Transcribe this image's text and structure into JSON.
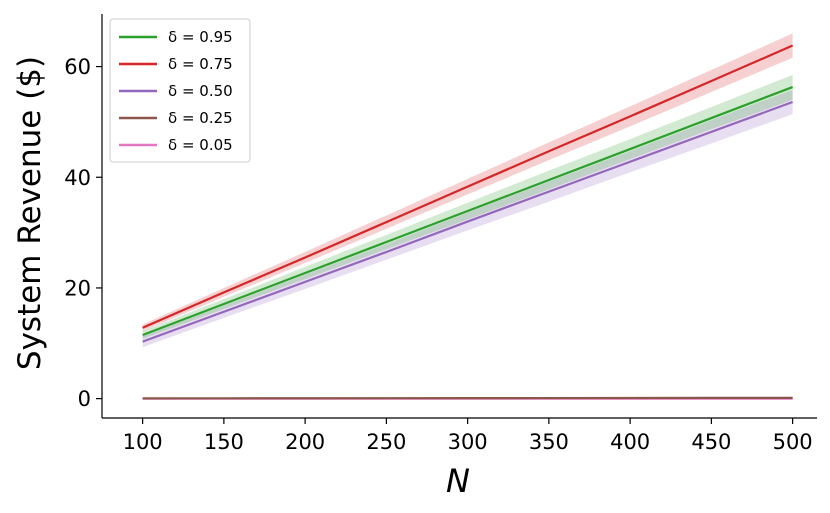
{
  "chart_data": {
    "type": "line",
    "title": "",
    "xlabel": "N",
    "ylabel": "System Revenue ($)",
    "xlim": [
      75,
      515
    ],
    "ylim": [
      -3.5,
      69.5
    ],
    "xticks": [
      100,
      150,
      200,
      250,
      300,
      350,
      400,
      450,
      500
    ],
    "yticks": [
      0,
      20,
      40,
      60
    ],
    "x": [
      100,
      150,
      200,
      250,
      300,
      350,
      400,
      450,
      500
    ],
    "legend_position": "top-left",
    "series": [
      {
        "name": "δ = 0.95",
        "color": "#2ca02c",
        "values": [
          11.5,
          17.1,
          22.7,
          28.3,
          33.9,
          39.5,
          45.1,
          50.7,
          56.3
        ],
        "lower": [
          10.8,
          16.2,
          21.6,
          27.0,
          32.4,
          37.8,
          43.3,
          48.7,
          54.0
        ],
        "upper": [
          12.2,
          18.0,
          23.8,
          29.6,
          35.4,
          41.2,
          46.9,
          52.7,
          58.5
        ]
      },
      {
        "name": "δ = 0.75",
        "color": "#d62728",
        "values": [
          12.8,
          19.2,
          25.5,
          31.9,
          38.3,
          44.7,
          51.0,
          57.4,
          63.8
        ],
        "lower": [
          12.2,
          18.4,
          24.5,
          30.7,
          36.9,
          43.1,
          49.2,
          55.4,
          61.6
        ],
        "upper": [
          13.4,
          20.0,
          26.5,
          33.1,
          39.7,
          46.3,
          52.8,
          59.4,
          66.0
        ]
      },
      {
        "name": "δ = 0.50",
        "color": "#9467bd",
        "values": [
          10.3,
          15.7,
          21.1,
          26.5,
          32.0,
          37.4,
          42.8,
          48.2,
          53.6
        ],
        "lower": [
          9.3,
          14.6,
          19.8,
          25.1,
          30.4,
          35.6,
          40.9,
          46.1,
          51.4
        ],
        "upper": [
          11.3,
          16.8,
          22.4,
          27.9,
          33.6,
          39.2,
          44.7,
          50.3,
          55.8
        ]
      },
      {
        "name": "δ = 0.25",
        "color": "#8c564b",
        "values": [
          0.05,
          0.06,
          0.07,
          0.08,
          0.09,
          0.1,
          0.12,
          0.13,
          0.14
        ],
        "lower": [
          0.0,
          0.0,
          0.0,
          0.0,
          0.0,
          0.0,
          0.0,
          0.0,
          0.0
        ],
        "upper": [
          0.1,
          0.12,
          0.14,
          0.16,
          0.18,
          0.2,
          0.24,
          0.26,
          0.28
        ]
      },
      {
        "name": "δ = 0.05",
        "color": "#e377c2",
        "values": [
          0.0,
          0.0,
          0.0,
          0.0,
          0.0,
          0.0,
          0.0,
          0.0,
          0.0
        ],
        "lower": [
          0.0,
          0.0,
          0.0,
          0.0,
          0.0,
          0.0,
          0.0,
          0.0,
          0.0
        ],
        "upper": [
          0.02,
          0.02,
          0.02,
          0.02,
          0.02,
          0.02,
          0.02,
          0.02,
          0.02
        ]
      }
    ]
  }
}
